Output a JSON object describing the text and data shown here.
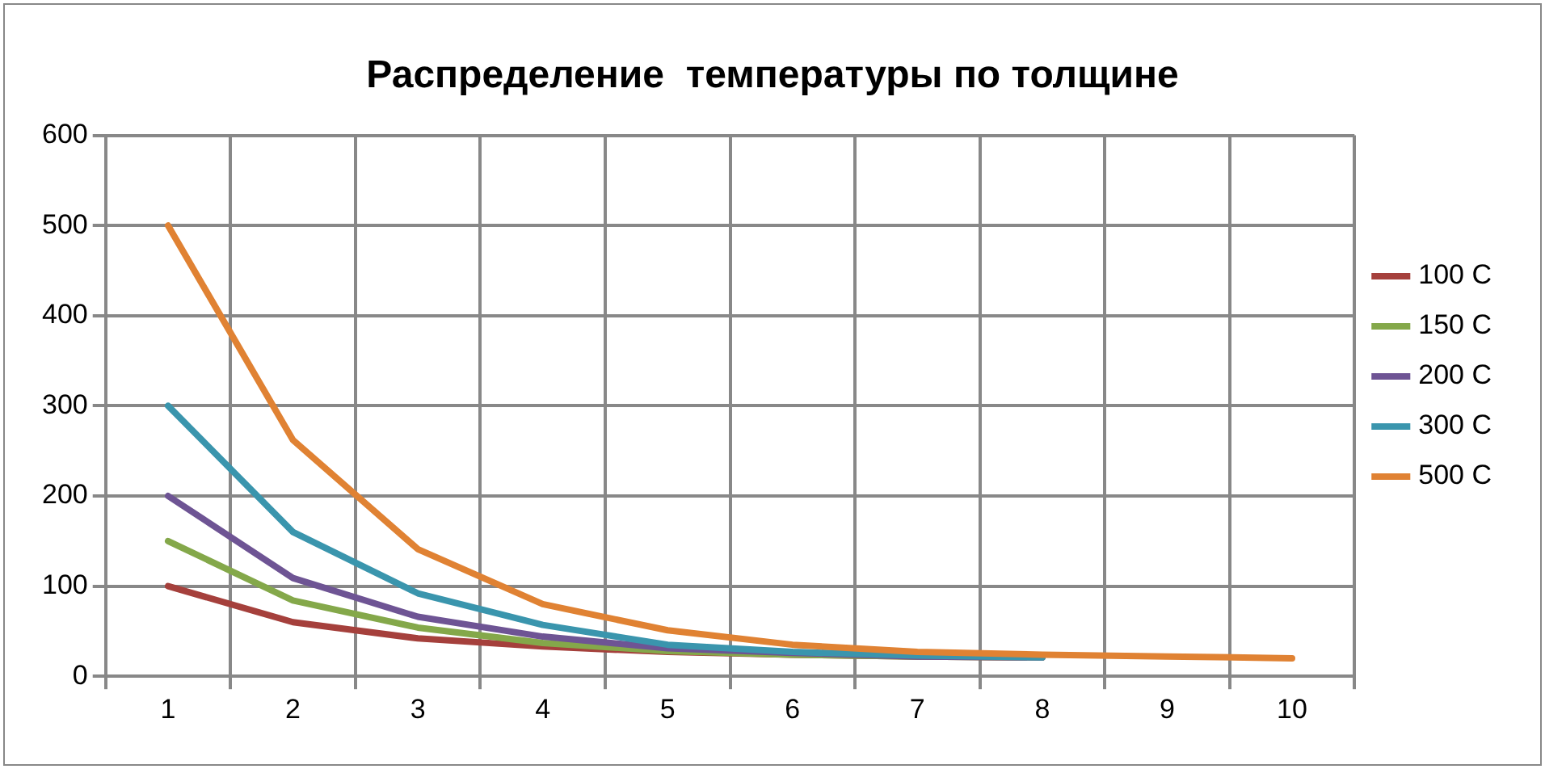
{
  "chart_data": {
    "type": "line",
    "title": "Распределение  температуры по толщине",
    "categories": [
      "1",
      "2",
      "3",
      "4",
      "5",
      "6",
      "7",
      "8",
      "9",
      "10"
    ],
    "series": [
      {
        "name": "100 C",
        "color": "#a5403c",
        "values": [
          100,
          60,
          42,
          33,
          27,
          24,
          22,
          21,
          null,
          null
        ]
      },
      {
        "name": "150 C",
        "color": "#84a84a",
        "values": [
          150,
          84,
          54,
          37,
          28,
          24,
          22,
          21,
          null,
          null
        ]
      },
      {
        "name": "200 C",
        "color": "#6e5494",
        "values": [
          200,
          109,
          66,
          44,
          31,
          26,
          22,
          21,
          null,
          null
        ]
      },
      {
        "name": "300 C",
        "color": "#3a95ad",
        "values": [
          300,
          160,
          92,
          57,
          35,
          27,
          23,
          21,
          null,
          null
        ]
      },
      {
        "name": "500 C",
        "color": "#e08233",
        "values": [
          500,
          262,
          141,
          80,
          51,
          35,
          27,
          24,
          22,
          20
        ]
      }
    ],
    "ylim": [
      0,
      600
    ],
    "yticks": [
      0,
      100,
      200,
      300,
      400,
      500,
      600
    ],
    "grid": true,
    "legend": "right",
    "marker": "none",
    "line_style": "solid"
  }
}
